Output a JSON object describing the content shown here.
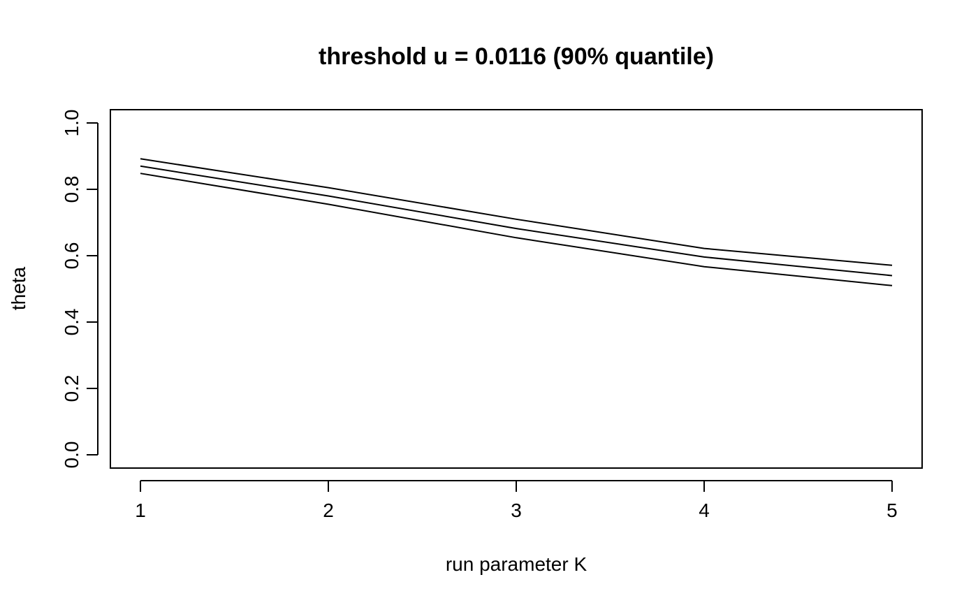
{
  "chart_data": {
    "type": "line",
    "title": "threshold u = 0.0116 (90% quantile)",
    "xlabel": "run parameter K",
    "ylabel": "theta",
    "x": [
      1,
      2,
      3,
      4,
      5
    ],
    "xticks": [
      "1",
      "2",
      "3",
      "4",
      "5"
    ],
    "yticks": [
      "0.0",
      "0.2",
      "0.4",
      "0.6",
      "0.8",
      "1.0"
    ],
    "xlim": [
      0.84,
      5.16
    ],
    "ylim": [
      -0.04,
      1.04
    ],
    "grid": false,
    "legend": "none",
    "line_color": "#000000",
    "series": [
      {
        "values": [
          0.892,
          0.805,
          0.71,
          0.622,
          0.571
        ]
      },
      {
        "values": [
          0.87,
          0.78,
          0.682,
          0.596,
          0.54
        ]
      },
      {
        "values": [
          0.848,
          0.755,
          0.654,
          0.567,
          0.51
        ]
      }
    ]
  }
}
